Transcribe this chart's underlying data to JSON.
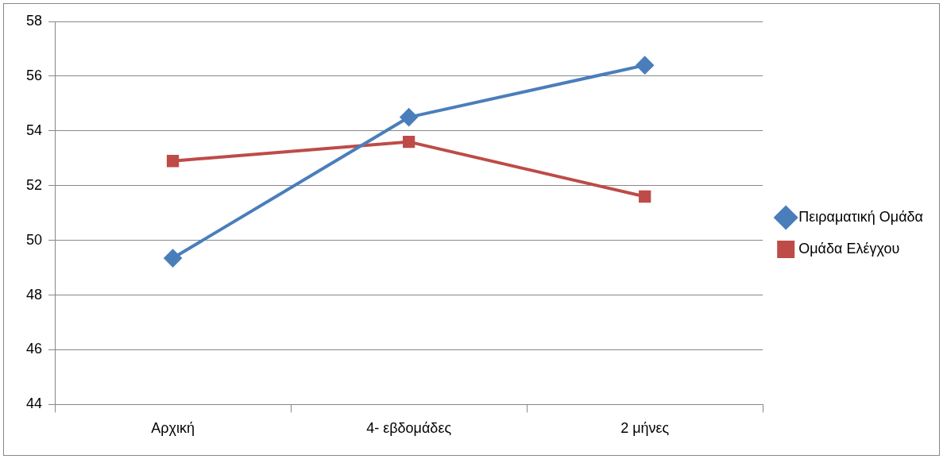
{
  "chart_data": {
    "type": "line",
    "categories": [
      "Αρχική",
      "4- εβδομάδες",
      "2 μήνες"
    ],
    "series": [
      {
        "name": "Πειραματική Ομάδα",
        "color": "#4a7ebb",
        "marker": "diamond",
        "values": [
          49.35,
          54.5,
          56.4
        ]
      },
      {
        "name": "Ομάδα Ελέγχου",
        "color": "#be4b48",
        "marker": "square",
        "values": [
          52.9,
          53.6,
          51.6
        ]
      }
    ],
    "ylim": [
      44,
      58
    ],
    "yticks": [
      44,
      46,
      48,
      50,
      52,
      54,
      56,
      58
    ],
    "grid": "y",
    "legend": "right",
    "line_style": "solid"
  }
}
